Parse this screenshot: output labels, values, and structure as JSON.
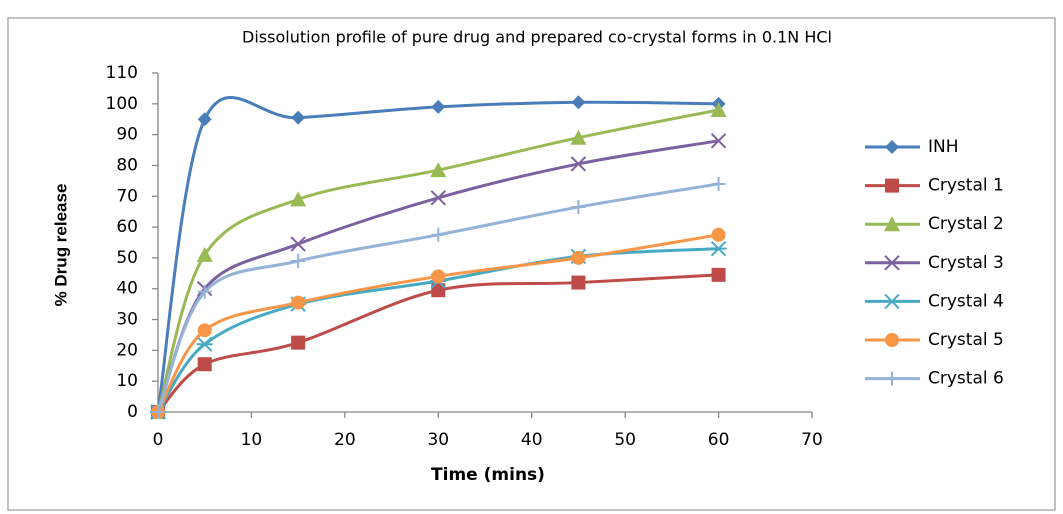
{
  "chart_data": {
    "type": "line",
    "title": "Dissolution profile of pure drug and prepared  co-crystal forms in 0.1N HCl",
    "x_label": "Time (mins)",
    "y_label": "% Drug release",
    "x": [
      0,
      5,
      15,
      30,
      45,
      60
    ],
    "xlim": [
      0,
      70
    ],
    "xticks": [
      0,
      10,
      20,
      30,
      40,
      50,
      60,
      70
    ],
    "ylim": [
      0,
      110
    ],
    "yticks": [
      0,
      10,
      20,
      30,
      40,
      50,
      60,
      70,
      80,
      90,
      100,
      110
    ],
    "grid": false,
    "smooth": true,
    "legend": "right",
    "series": [
      {
        "name": "INH",
        "color": "#4a7ebb",
        "marker": "diamond",
        "values": [
          0,
          95,
          95.5,
          99,
          100.5,
          100
        ]
      },
      {
        "name": "Crystal 1",
        "color": "#be4b48",
        "marker": "square",
        "values": [
          0,
          15.5,
          22.5,
          39.5,
          42,
          44.5
        ]
      },
      {
        "name": "Crystal 2",
        "color": "#98b954",
        "marker": "triangle",
        "values": [
          0,
          51,
          69,
          78.5,
          89,
          98
        ]
      },
      {
        "name": "Crystal 3",
        "color": "#7d60a0",
        "marker": "x",
        "values": [
          0,
          40,
          54.5,
          69.5,
          80.5,
          88
        ]
      },
      {
        "name": "Crystal 4",
        "color": "#46aac5",
        "marker": "star",
        "values": [
          0,
          22,
          35,
          42.5,
          50.5,
          53
        ]
      },
      {
        "name": "Crystal 5",
        "color": "#f79646",
        "marker": "circle",
        "values": [
          0,
          26.5,
          35.5,
          44,
          50,
          57.5
        ]
      },
      {
        "name": "Crystal 6",
        "color": "#95b3d7",
        "marker": "plus",
        "values": [
          0,
          39,
          49,
          57.5,
          66.5,
          74
        ]
      }
    ]
  }
}
